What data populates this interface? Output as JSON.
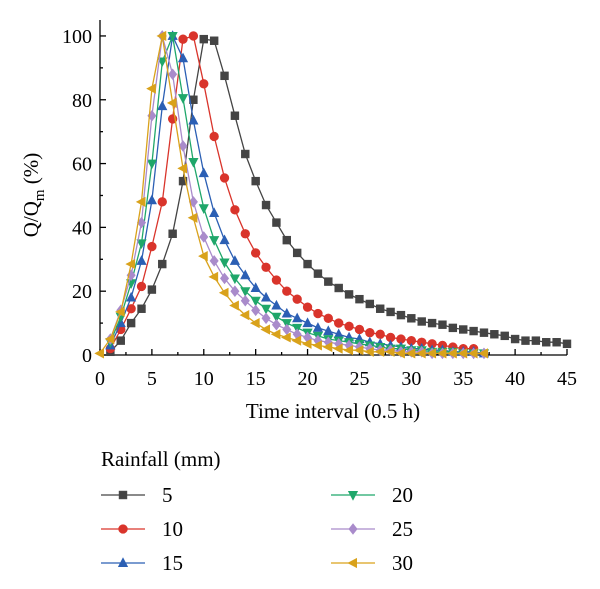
{
  "chart_data": {
    "type": "line",
    "xlabel": "Time interval (0.5 h)",
    "ylabel": "Q/Q",
    "ylabel_sub": "m",
    "ylabel_unit": " (%)",
    "xlim": [
      0,
      45
    ],
    "ylim": [
      0,
      105
    ],
    "xticks": [
      0,
      5,
      10,
      15,
      20,
      25,
      30,
      35,
      40,
      45
    ],
    "yticks": [
      0,
      20,
      40,
      60,
      80,
      100
    ],
    "grid": false,
    "legend_title": "Rainfall (mm)",
    "legend_position": "bottom",
    "series": [
      {
        "name": "5",
        "color": "#444444",
        "marker": "square",
        "x": [
          1,
          2,
          3,
          4,
          5,
          6,
          7,
          8,
          9,
          10,
          11,
          12,
          13,
          14,
          15,
          16,
          17,
          18,
          19,
          20,
          21,
          22,
          23,
          24,
          25,
          26,
          27,
          28,
          29,
          30,
          31,
          32,
          33,
          34,
          35,
          36,
          37,
          38,
          39,
          40,
          41,
          42,
          43,
          44,
          45
        ],
        "y": [
          1,
          4.5,
          10,
          14.5,
          20.5,
          28.5,
          38,
          54.5,
          80,
          99,
          98.5,
          87.5,
          75,
          63,
          54.5,
          47,
          41.5,
          36,
          32,
          28.5,
          25.5,
          23,
          21,
          19,
          17.5,
          16,
          14.5,
          13.5,
          12.5,
          11.5,
          10.5,
          10,
          9.5,
          8.5,
          8,
          7.5,
          7,
          6.5,
          6,
          5,
          4.5,
          4.5,
          4,
          4,
          3.5
        ]
      },
      {
        "name": "10",
        "color": "#d9342b",
        "marker": "circle",
        "x": [
          1,
          2,
          3,
          4,
          5,
          6,
          7,
          8,
          9,
          10,
          11,
          12,
          13,
          14,
          15,
          16,
          17,
          18,
          19,
          20,
          21,
          22,
          23,
          24,
          25,
          26,
          27,
          28,
          29,
          30,
          31,
          32,
          33,
          34,
          35,
          36
        ],
        "y": [
          2,
          8,
          14.5,
          21.5,
          34,
          48,
          74,
          99,
          100,
          85,
          68.5,
          55.5,
          45.5,
          38,
          32,
          27.5,
          23.5,
          20,
          17.5,
          15,
          13,
          11.5,
          10,
          9,
          8,
          7,
          6.5,
          5.5,
          5,
          4.5,
          4,
          3.5,
          3,
          2.5,
          2,
          2
        ]
      },
      {
        "name": "15",
        "color": "#2b5fb4",
        "marker": "triangle-up",
        "x": [
          1,
          2,
          3,
          4,
          5,
          6,
          7,
          8,
          9,
          10,
          11,
          12,
          13,
          14,
          15,
          16,
          17,
          18,
          19,
          20,
          21,
          22,
          23,
          24,
          25,
          26,
          27,
          28,
          29,
          30,
          31,
          32,
          33,
          34,
          35,
          36,
          37
        ],
        "y": [
          3,
          10,
          18,
          29.5,
          48.5,
          78,
          100,
          93,
          73.5,
          57,
          44.5,
          36,
          29.5,
          25,
          21,
          18,
          15.5,
          13,
          11.5,
          10,
          8.5,
          7.5,
          6.5,
          5.5,
          5,
          4,
          3.5,
          3,
          2.5,
          2,
          2,
          1.5,
          1.5,
          1,
          1,
          1,
          0.5
        ]
      },
      {
        "name": "20",
        "color": "#1fa76a",
        "marker": "triangle-down",
        "x": [
          1,
          2,
          3,
          4,
          5,
          6,
          7,
          8,
          9,
          10,
          11,
          12,
          13,
          14,
          15,
          16,
          17,
          18,
          19,
          20,
          21,
          22,
          23,
          24,
          25,
          26,
          27,
          28,
          29,
          30,
          31,
          32,
          33,
          34,
          35,
          36,
          37
        ],
        "y": [
          4,
          12,
          22.5,
          35,
          60,
          92,
          100,
          80.5,
          60.5,
          46,
          36,
          29,
          24,
          20,
          17,
          14.5,
          12,
          10,
          8.5,
          7,
          6,
          5,
          4.5,
          4,
          3.5,
          3,
          2.5,
          2,
          2,
          1.5,
          1.5,
          1,
          1,
          1,
          0.5,
          0.5,
          0.5
        ]
      },
      {
        "name": "25",
        "color": "#a98bcb",
        "marker": "diamond",
        "x": [
          1,
          2,
          3,
          4,
          5,
          6,
          7,
          8,
          9,
          10,
          11,
          12,
          13,
          14,
          15,
          16,
          17,
          18,
          19,
          20,
          21,
          22,
          23,
          24,
          25,
          26,
          27,
          28,
          29,
          30,
          31,
          32,
          33,
          34,
          35,
          36,
          37
        ],
        "y": [
          5,
          14,
          25,
          41.5,
          75,
          100,
          88,
          65.5,
          48,
          37,
          29.5,
          24,
          20,
          17,
          14,
          11.5,
          9.5,
          8,
          6.5,
          5.5,
          4.5,
          4,
          3.5,
          3,
          2.5,
          2,
          1.5,
          1.5,
          1,
          1,
          1,
          0.5,
          0.5,
          0.5,
          0.5,
          0.5,
          0.5
        ]
      },
      {
        "name": "30",
        "color": "#d9a21b",
        "marker": "triangle-left",
        "x": [
          0,
          1,
          2,
          3,
          4,
          5,
          6,
          7,
          8,
          9,
          10,
          11,
          12,
          13,
          14,
          15,
          16,
          17,
          18,
          19,
          20,
          21,
          22,
          23,
          24,
          25,
          26,
          27,
          28,
          29,
          30,
          31,
          32,
          33,
          34,
          35,
          36,
          37
        ],
        "y": [
          0.5,
          5,
          13.5,
          28.5,
          48,
          83.5,
          100,
          79,
          58.5,
          43,
          31,
          24.5,
          19.5,
          15.5,
          12.5,
          10,
          8,
          6.5,
          5.5,
          4.5,
          3.5,
          3,
          2.5,
          2,
          1.5,
          1.5,
          1,
          1,
          1,
          0.5,
          0.5,
          0.5,
          0.5,
          0.5,
          0.5,
          0.5,
          0.5,
          0.5
        ]
      }
    ]
  }
}
